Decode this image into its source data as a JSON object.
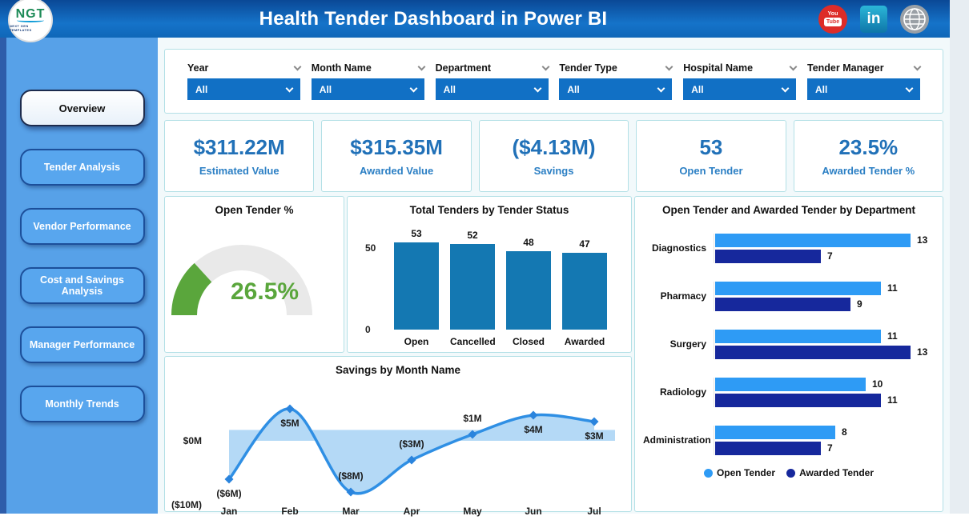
{
  "header": {
    "title": "Health Tender Dashboard in Power BI",
    "logo": {
      "text": "NGT",
      "tagline": "NEXT GEN TEMPLATES"
    },
    "social": [
      {
        "name": "youtube"
      },
      {
        "name": "linkedin"
      },
      {
        "name": "website"
      }
    ]
  },
  "sidebar": {
    "items": [
      {
        "label": "Overview",
        "active": true
      },
      {
        "label": "Tender Analysis",
        "active": false
      },
      {
        "label": "Vendor Performance",
        "active": false
      },
      {
        "label": "Cost and Savings Analysis",
        "active": false
      },
      {
        "label": "Manager Performance",
        "active": false
      },
      {
        "label": "Monthly Trends",
        "active": false
      }
    ]
  },
  "filters": [
    {
      "label": "Year",
      "value": "All"
    },
    {
      "label": "Month Name",
      "value": "All"
    },
    {
      "label": "Department",
      "value": "All"
    },
    {
      "label": "Tender Type",
      "value": "All"
    },
    {
      "label": "Hospital Name",
      "value": "All"
    },
    {
      "label": "Tender Manager",
      "value": "All"
    }
  ],
  "kpis": [
    {
      "value": "$311.22M",
      "label": "Estimated Value"
    },
    {
      "value": "$315.35M",
      "label": "Awarded Value"
    },
    {
      "value": "($4.13M)",
      "label": "Savings"
    },
    {
      "value": "53",
      "label": "Open Tender"
    },
    {
      "value": "23.5%",
      "label": "Awarded Tender %"
    }
  ],
  "colors": {
    "header_blue": "#0e5bab",
    "sidebar_blue": "#57a1e8",
    "slicer_blue": "#1170c5",
    "kpi_blue": "#2171b8",
    "card_border": "#b3e0e6",
    "status_bar": "#1478b2",
    "open_series": "#2e9bf5",
    "awarded_series": "#16289c",
    "gauge_green": "#5aa63c",
    "line_blue": "#2f8fe4",
    "area_fill": "#b4d9f6"
  },
  "chart_data": [
    {
      "id": "gauge",
      "type": "gauge",
      "title": "Open Tender %",
      "value": 26.5,
      "min": 0,
      "max": 100,
      "display": "26.5%",
      "arc_color": "#5aa63c",
      "track_color": "#e9e9e9"
    },
    {
      "id": "status_bars",
      "type": "bar",
      "title": "Total Tenders by Tender Status",
      "categories": [
        "Open",
        "Cancelled",
        "Closed",
        "Awarded"
      ],
      "values": [
        53,
        52,
        48,
        47
      ],
      "yticks": [
        0,
        50
      ],
      "ylim": [
        0,
        56
      ],
      "bar_color": "#1478b2",
      "grid": false
    },
    {
      "id": "dept_bars",
      "type": "bar-horizontal-grouped",
      "title": "Open Tender and Awarded Tender by Department",
      "categories": [
        "Diagnostics",
        "Pharmacy",
        "Surgery",
        "Radiology",
        "Administration"
      ],
      "series": [
        {
          "name": "Open Tender",
          "color": "#2e9bf5",
          "values": [
            13,
            11,
            11,
            10,
            8
          ]
        },
        {
          "name": "Awarded Tender",
          "color": "#16289c",
          "values": [
            7,
            9,
            13,
            11,
            7
          ]
        }
      ],
      "xlim": [
        0,
        14
      ],
      "legend_position": "bottom"
    },
    {
      "id": "savings_line",
      "type": "area",
      "title": "Savings by Month Name",
      "x": [
        "Jan",
        "Feb",
        "Mar",
        "Apr",
        "May",
        "Jun",
        "Jul"
      ],
      "values": [
        -6,
        5,
        -8,
        -3,
        1,
        4,
        3
      ],
      "point_labels": [
        "($6M)",
        "$5M",
        "($8M)",
        "($3M)",
        "$1M",
        "$4M",
        "$3M"
      ],
      "label_positions": [
        "below",
        "below",
        "above",
        "above",
        "above",
        "below",
        "below"
      ],
      "yticks": [
        {
          "label": "$0M",
          "value": 0
        },
        {
          "label": "($10M)",
          "value": -10
        }
      ],
      "ylim": [
        -11,
        8
      ],
      "line_color": "#2f8fe4",
      "fill_color": "#b4d9f6",
      "marker_color": "#2a84dd"
    }
  ]
}
